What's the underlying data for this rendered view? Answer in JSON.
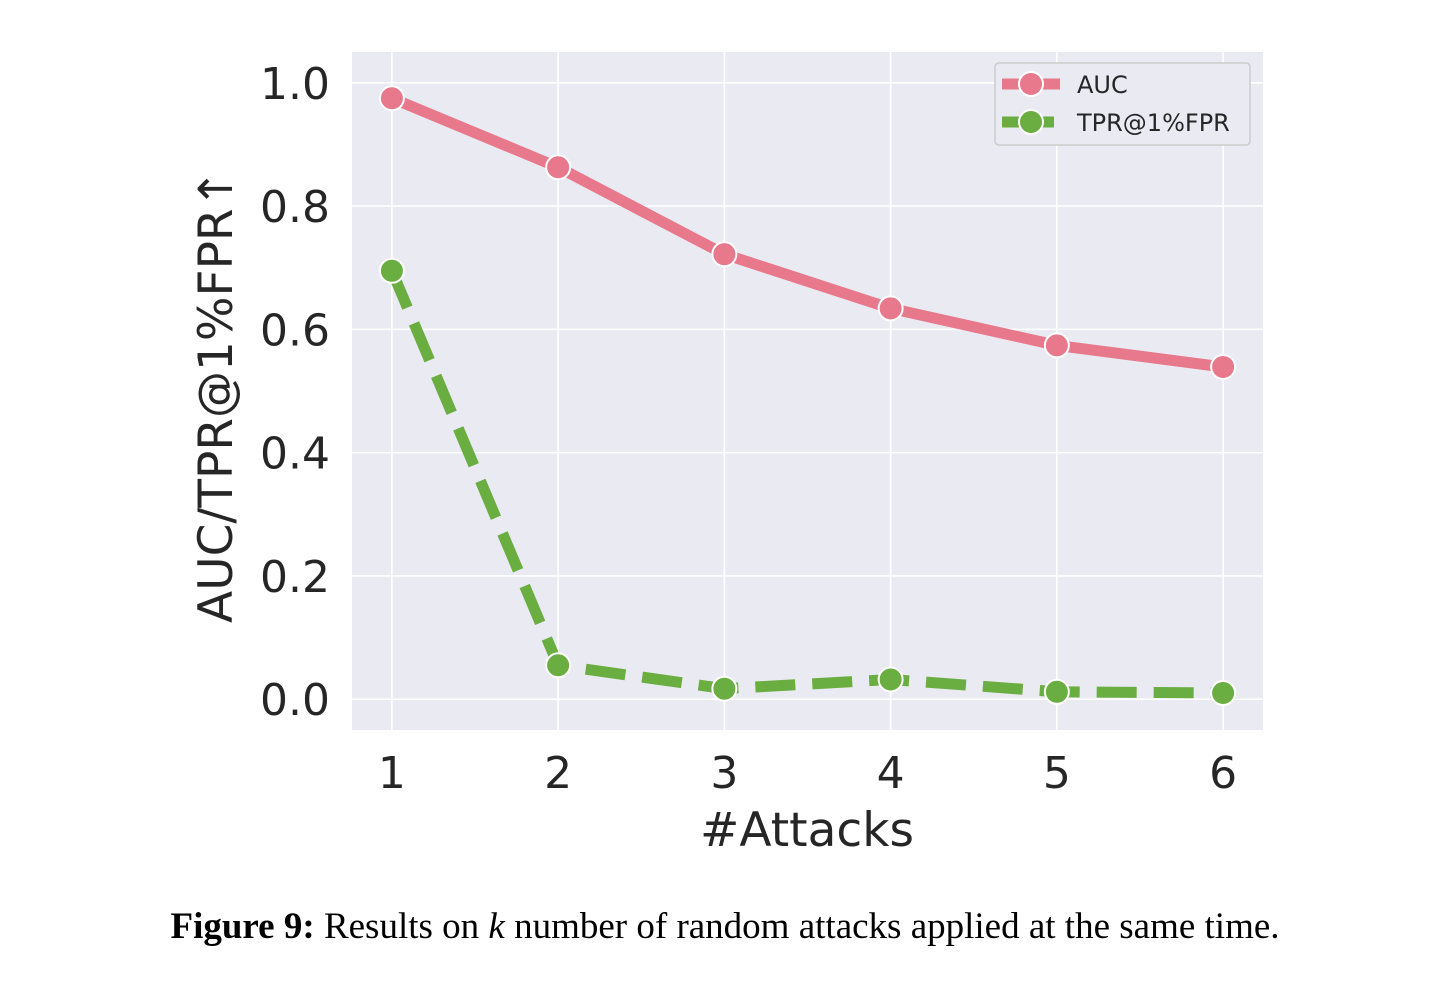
{
  "chart_data": {
    "type": "line",
    "x": [
      1,
      2,
      3,
      4,
      5,
      6
    ],
    "xticks": [
      "1",
      "2",
      "3",
      "4",
      "5",
      "6"
    ],
    "yticks": [
      "0.0",
      "0.2",
      "0.4",
      "0.6",
      "0.8",
      "1.0"
    ],
    "xlabel": "#Attacks",
    "ylabel": "AUC/TPR@1%FPR↑",
    "xlim": [
      0.76,
      6.24
    ],
    "ylim": [
      -0.05,
      1.05
    ],
    "grid": true,
    "legend_position": "top-right",
    "series": [
      {
        "name": "AUC",
        "values": [
          0.975,
          0.863,
          0.722,
          0.634,
          0.574,
          0.539
        ],
        "color": "#e8788b",
        "line_style": "solid"
      },
      {
        "name": "TPR@1%FPR",
        "values": [
          0.695,
          0.055,
          0.017,
          0.032,
          0.012,
          0.01
        ],
        "color": "#6aad40",
        "line_style": "dashed"
      }
    ]
  },
  "caption": {
    "label": "Figure 9:",
    "text_before_var": " Results on ",
    "variable": "k",
    "text_after_var": " number of random attacks applied at the same time."
  }
}
